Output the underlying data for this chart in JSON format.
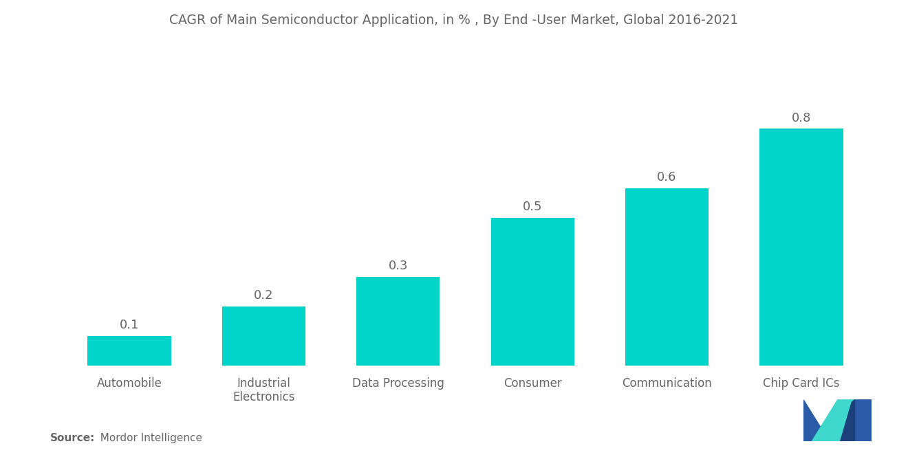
{
  "title": "CAGR of Main Semiconductor Application, in % , By End -User Market, Global 2016-2021",
  "categories": [
    "Automobile",
    "Industrial\nElectronics",
    "Data Processing",
    "Consumer",
    "Communication",
    "Chip Card ICs"
  ],
  "values": [
    0.1,
    0.2,
    0.3,
    0.5,
    0.6,
    0.8
  ],
  "bar_color": "#00D4C8",
  "background_color": "#ffffff",
  "title_color": "#666666",
  "label_color": "#666666",
  "value_color": "#666666",
  "title_fontsize": 13.5,
  "label_fontsize": 12,
  "value_fontsize": 13,
  "ylim": [
    0,
    1.05
  ],
  "source_bold": "Source:",
  "source_rest": "  Mordor Intelligence",
  "source_fontsize": 11,
  "logo_dark": "#2B5BA8",
  "logo_teal": "#3ED8CC",
  "logo_dark2": "#1A3F7A"
}
